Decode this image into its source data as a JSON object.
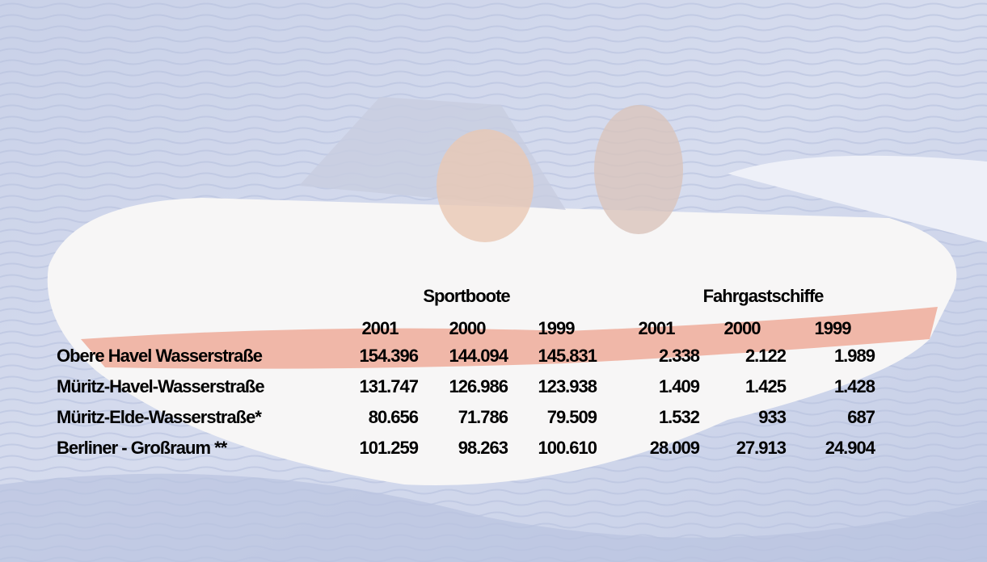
{
  "table": {
    "groups": [
      "Sportboote",
      "Fahrgastschiffe"
    ],
    "years": [
      "2001",
      "2000",
      "1999",
      "2001",
      "2000",
      "1999"
    ],
    "rows": [
      [
        "Obere Havel Wasserstraße",
        "154.396",
        "144.094",
        "145.831",
        "2.338",
        "2.122",
        "1.989"
      ],
      [
        "Müritz-Havel-Wasserstraße",
        "131.747",
        "126.986",
        "123.938",
        "1.409",
        "1.425",
        "1.428"
      ],
      [
        "Müritz-Elde-Wasserstraße*",
        "80.656",
        "71.786",
        "79.509",
        "1.532",
        "933",
        "687"
      ],
      [
        "Berliner - Großraum **",
        "101.259",
        "98.263",
        "100.610",
        "28.009",
        "27.913",
        "24.904"
      ]
    ]
  }
}
